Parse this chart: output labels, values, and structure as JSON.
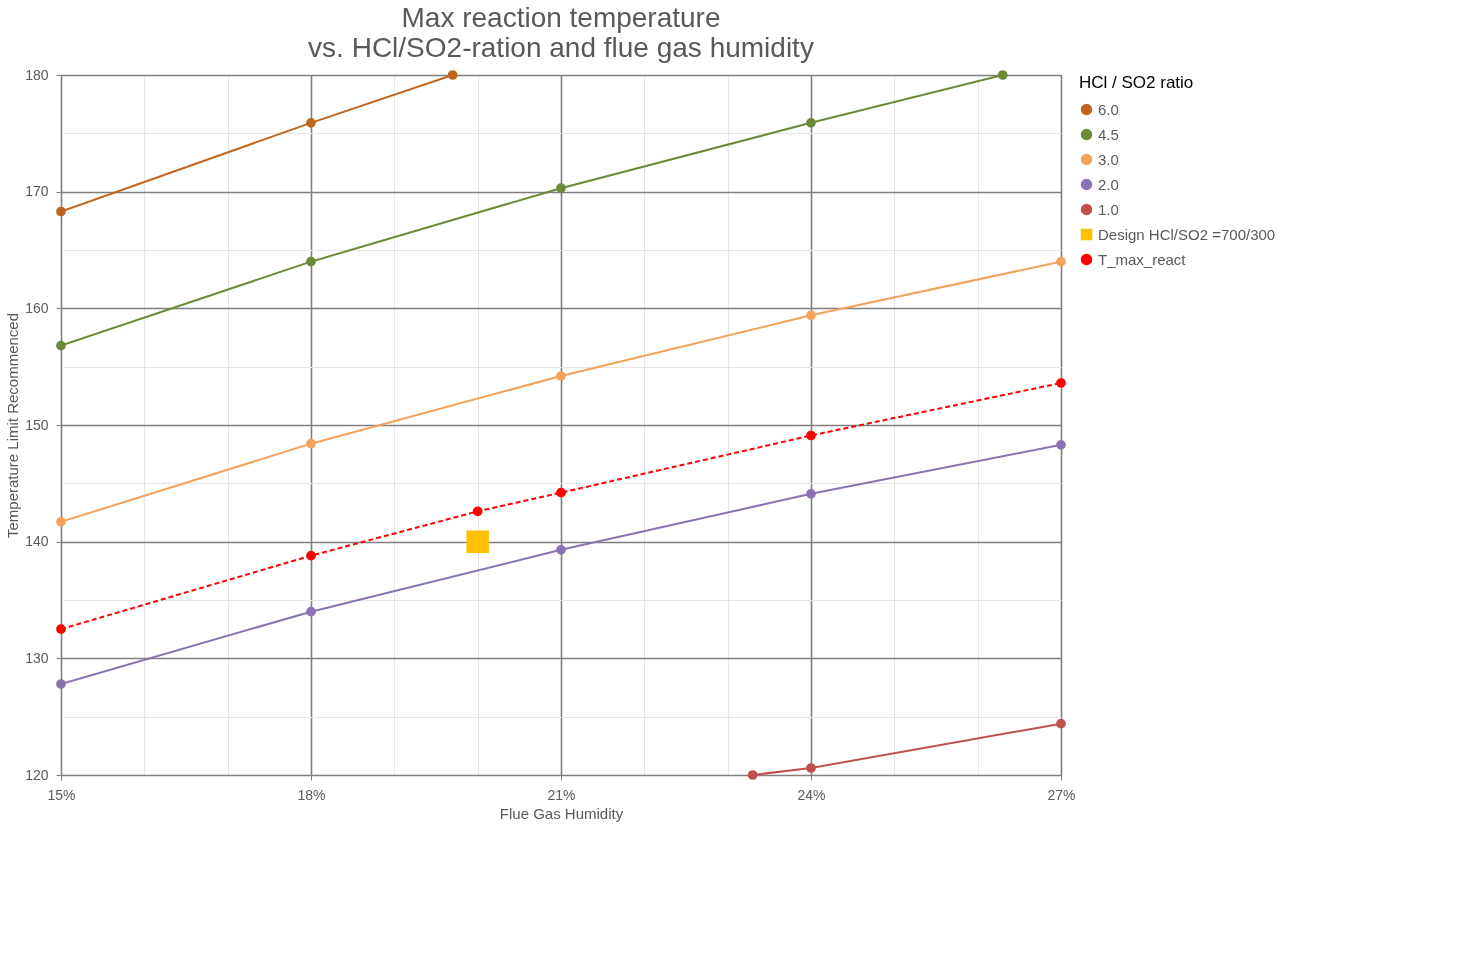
{
  "chart_data": {
    "type": "line",
    "title": [
      "Max reaction temperature",
      "vs. HCl/SO2-ration and flue gas humidity"
    ],
    "xlabel": "Flue Gas Humidity",
    "ylabel": "Temperature Limit Recommenced",
    "legend_title": "HCl / SO2 ratio",
    "legend": "right",
    "grid": true,
    "marker": "circle",
    "line_style": "solid",
    "x": [
      15,
      18,
      21,
      24,
      27
    ],
    "xlim": [
      15,
      27
    ],
    "ylim": [
      120,
      180
    ],
    "xticks": [
      {
        "value": 15,
        "label": "15%"
      },
      {
        "value": 16,
        "label": null
      },
      {
        "value": 17,
        "label": null
      },
      {
        "value": 18,
        "label": "18%"
      },
      {
        "value": 19,
        "label": null
      },
      {
        "value": 20,
        "label": null
      },
      {
        "value": 21,
        "label": "21%"
      },
      {
        "value": 22,
        "label": null
      },
      {
        "value": 23,
        "label": null
      },
      {
        "value": 24,
        "label": "24%"
      },
      {
        "value": 25,
        "label": null
      },
      {
        "value": 26,
        "label": null
      },
      {
        "value": 27,
        "label": "27%"
      }
    ],
    "yticks": [
      120,
      {
        "value": 125,
        "label": null
      },
      130,
      {
        "value": 135,
        "label": null
      },
      140,
      {
        "value": 145,
        "label": null
      },
      150,
      {
        "value": 155,
        "label": null
      },
      160,
      {
        "value": 165,
        "label": null
      },
      170,
      {
        "value": 175,
        "label": null
      },
      180
    ],
    "series": [
      {
        "name": "6.0",
        "color": "#c0651f",
        "x": [
          15,
          18,
          19.7
        ],
        "values": [
          168.3,
          175.9,
          180
        ]
      },
      {
        "name": "4.5",
        "color": "#6b8a3a",
        "x": [
          15,
          18,
          21,
          24,
          26.3
        ],
        "values": [
          156.8,
          164.0,
          170.3,
          175.9,
          180
        ]
      },
      {
        "name": "3.0",
        "color": "#f4a15a",
        "values": [
          141.7,
          148.4,
          154.2,
          159.4,
          164.0
        ]
      },
      {
        "name": "2.0",
        "color": "#8a72b3",
        "values": [
          127.8,
          134.0,
          139.3,
          144.1,
          148.3
        ]
      },
      {
        "name": "1.0",
        "color": "#c0504d",
        "x": [
          23.3,
          24,
          27
        ],
        "values": [
          120,
          120.6,
          124.4
        ]
      },
      {
        "name": "Design HCl/SO2 =700/300",
        "type": "scatter",
        "color": "#ffc000",
        "marker": "square",
        "x": [
          20
        ],
        "values": [
          140
        ]
      },
      {
        "name": "T_max_react",
        "color": "#ff0000",
        "line_style": "dashed",
        "x": [
          15,
          18,
          20,
          21,
          24,
          27
        ],
        "values": [
          132.5,
          138.8,
          142.6,
          144.2,
          149.1,
          153.6
        ]
      }
    ]
  }
}
